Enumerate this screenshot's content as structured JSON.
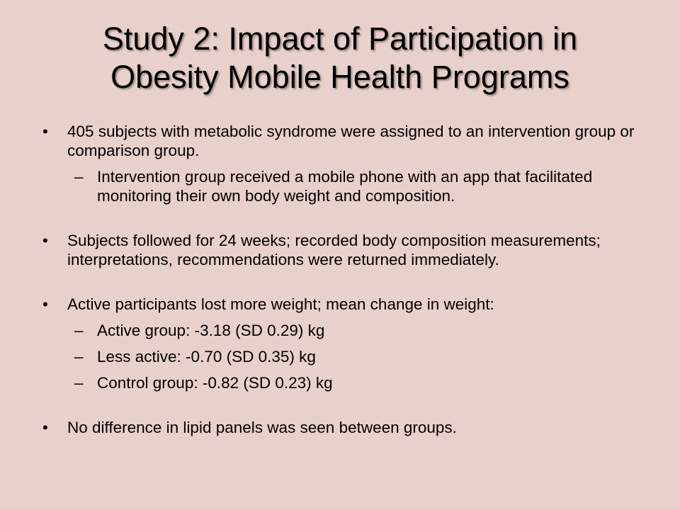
{
  "slide": {
    "title_line1": "Study 2: Impact of Participation in",
    "title_line2": "Obesity Mobile Health Programs",
    "bullet_mark": "•",
    "sub_mark": "–",
    "items": [
      "405 subjects with metabolic syndrome were assigned to an intervention group or comparison group.",
      "Intervention group received a mobile phone with an app that facilitated monitoring their own body weight and composition.",
      "Subjects followed for 24 weeks; recorded body composition measurements; interpretations, recommendations were returned immediately.",
      "Active participants lost more weight; mean change in weight:",
      "Active group: -3.18 (SD 0.29) kg",
      "Less active: -0.70 (SD 0.35) kg",
      "Control group: -0.82 (SD 0.23) kg",
      "No difference in lipid panels was seen between groups."
    ]
  }
}
